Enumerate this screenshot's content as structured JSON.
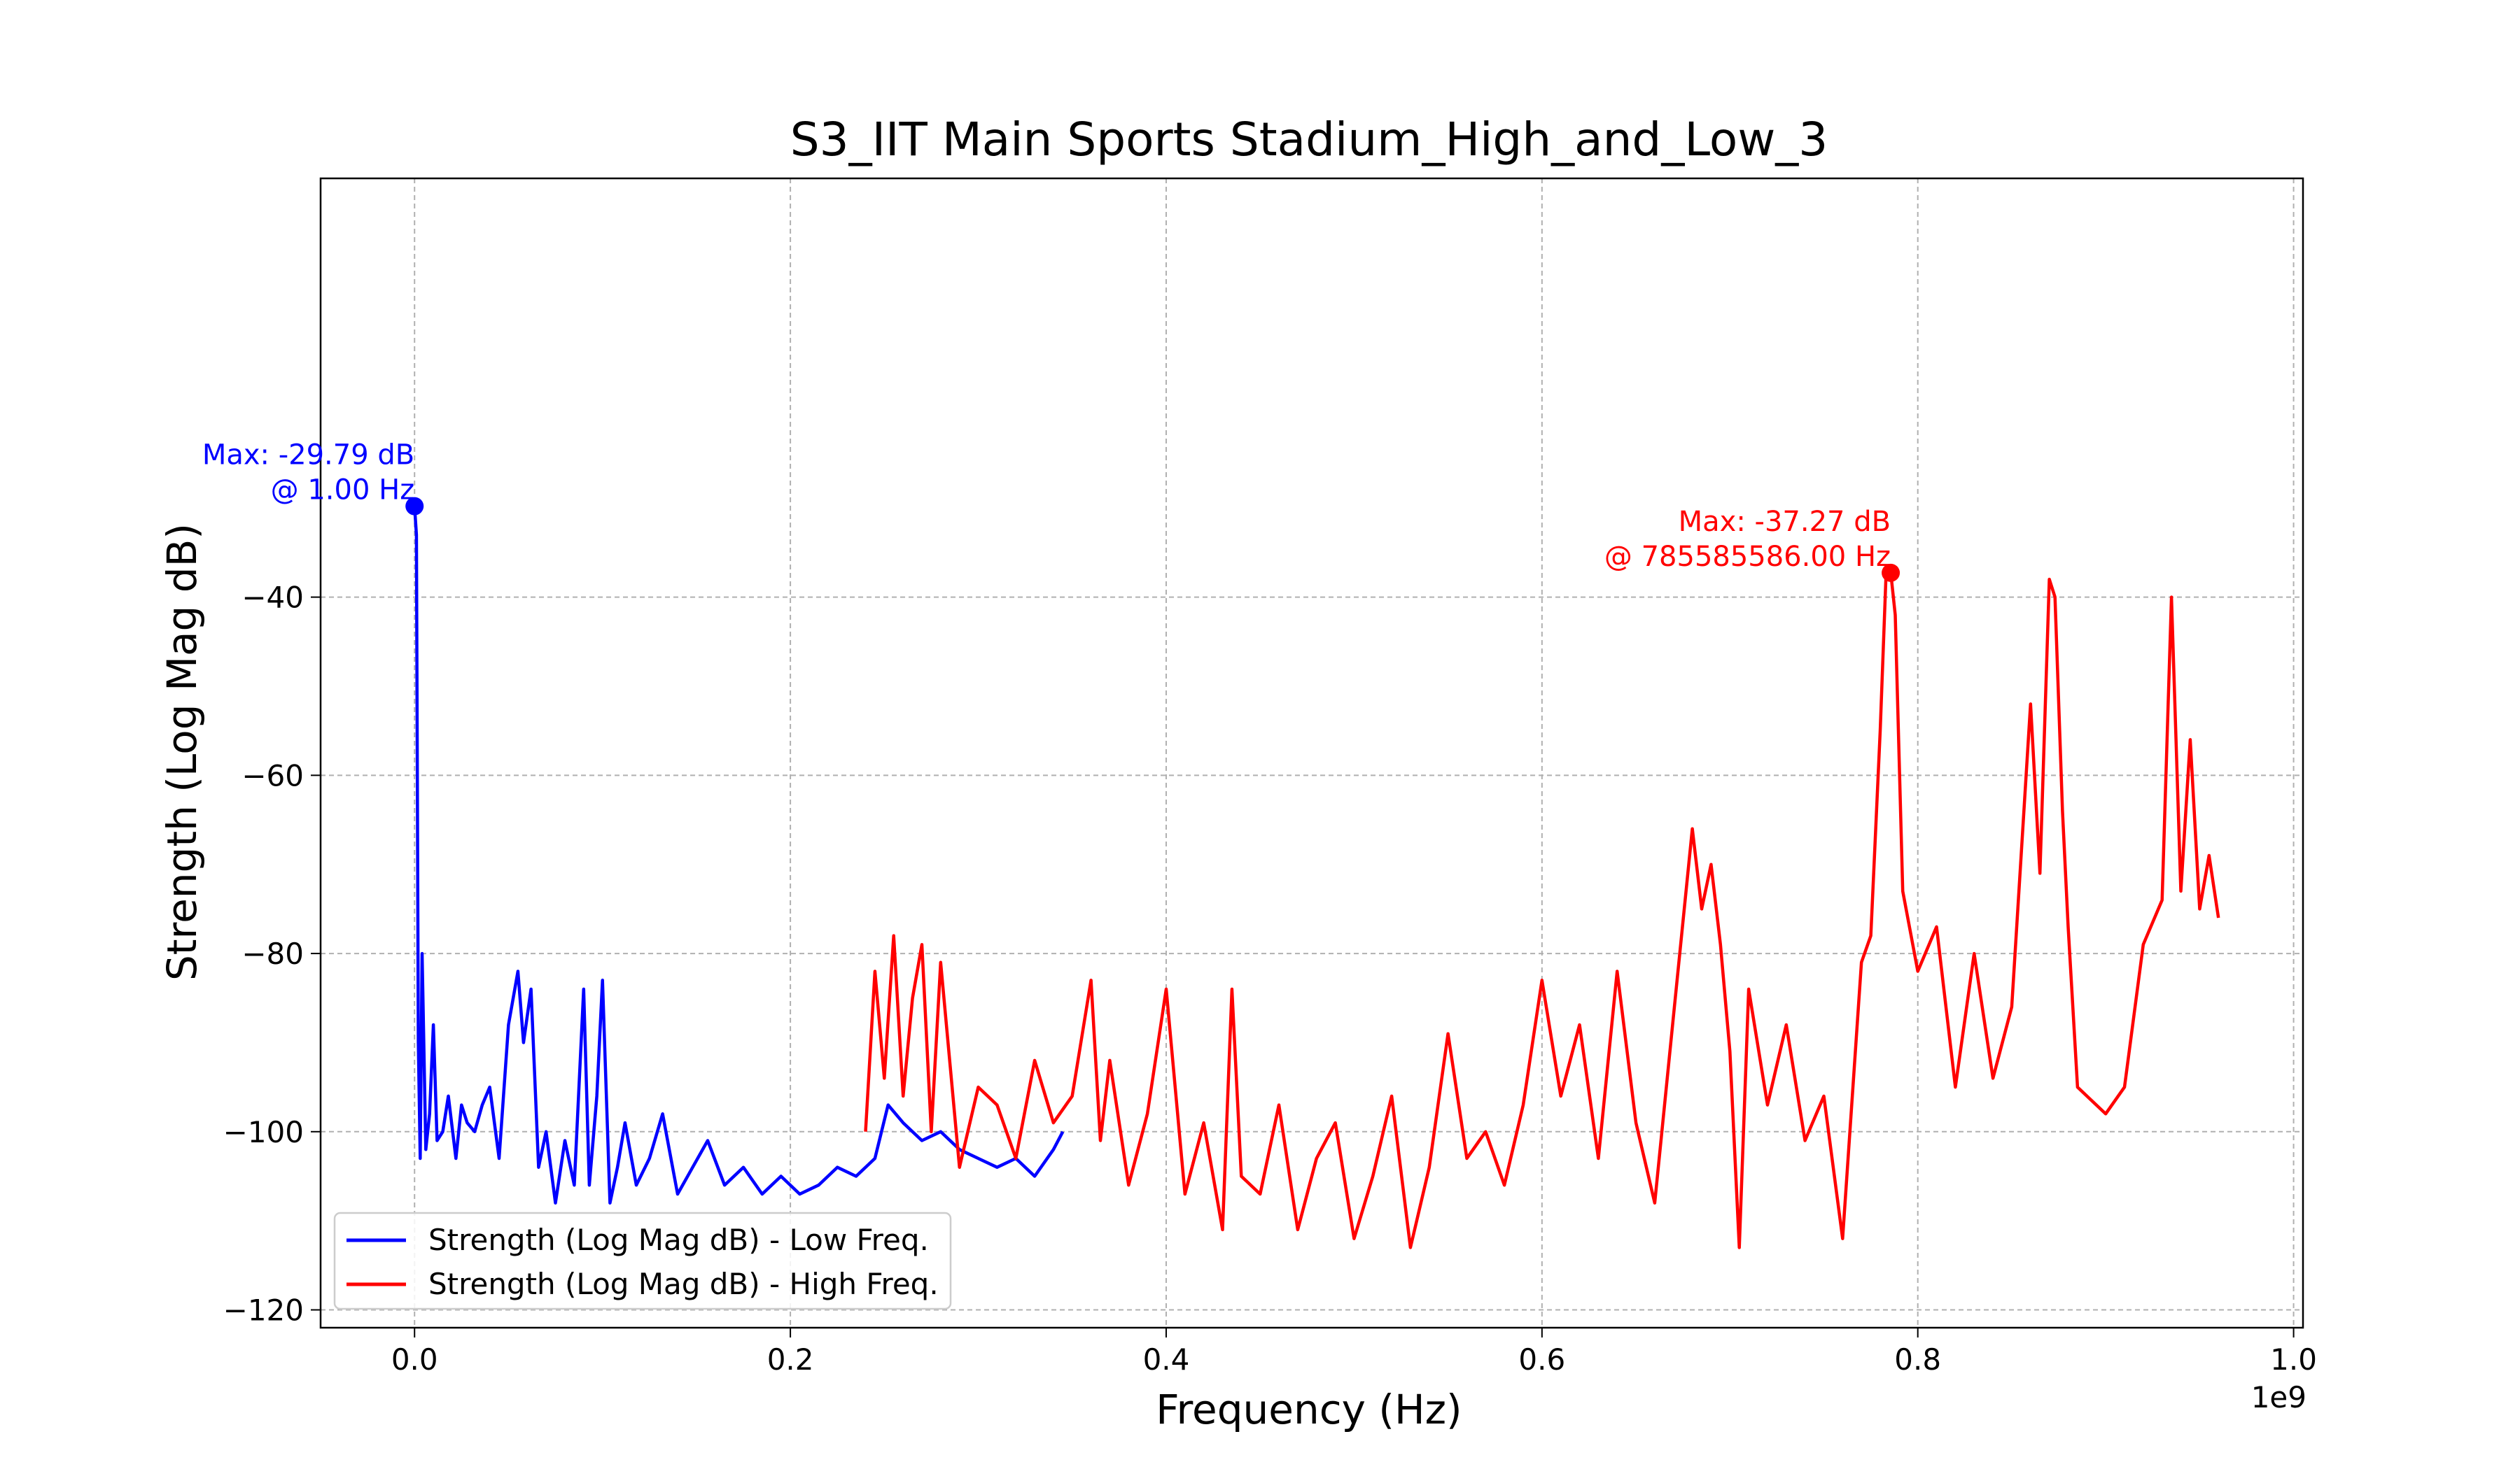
{
  "chart_data": {
    "type": "line",
    "title": "S3_IIT Main Sports Stadium_High_and_Low_3",
    "xlabel": "Frequency (Hz)",
    "ylabel": "Strength (Log Mag dB)",
    "x_offset_text": "1e9",
    "xlim": [
      -0.05,
      1.005
    ],
    "ylim": [
      -122,
      7
    ],
    "x_ticks": [
      0.0,
      0.2,
      0.4,
      0.6,
      0.8,
      1.0
    ],
    "x_tick_labels": [
      "0.0",
      "0.2",
      "0.4",
      "0.6",
      "0.8",
      "1.0"
    ],
    "y_ticks": [
      -120,
      -100,
      -80,
      -60,
      -40
    ],
    "y_tick_labels": [
      "−120",
      "−100",
      "−80",
      "−60",
      "−40"
    ],
    "grid": true,
    "legend_position": "bottom-left",
    "series": [
      {
        "name": "Strength (Log Mag dB) - Low Freq.",
        "color": "#0000ff",
        "x": [
          0.0,
          0.001,
          0.002,
          0.003,
          0.004,
          0.006,
          0.008,
          0.01,
          0.012,
          0.015,
          0.018,
          0.022,
          0.025,
          0.028,
          0.032,
          0.036,
          0.04,
          0.045,
          0.05,
          0.055,
          0.058,
          0.062,
          0.066,
          0.07,
          0.075,
          0.08,
          0.085,
          0.09,
          0.093,
          0.097,
          0.1,
          0.104,
          0.108,
          0.112,
          0.118,
          0.125,
          0.132,
          0.14,
          0.148,
          0.156,
          0.165,
          0.175,
          0.185,
          0.195,
          0.205,
          0.215,
          0.225,
          0.235,
          0.245,
          0.252,
          0.26,
          0.27,
          0.28,
          0.29,
          0.3,
          0.31,
          0.32,
          0.33,
          0.34,
          0.345
        ],
        "y": [
          -29.79,
          -33,
          -90,
          -103,
          -80,
          -102,
          -98,
          -88,
          -101,
          -100,
          -96,
          -103,
          -97,
          -99,
          -100,
          -97,
          -95,
          -103,
          -88,
          -82,
          -90,
          -84,
          -104,
          -100,
          -108,
          -101,
          -106,
          -84,
          -106,
          -96,
          -83,
          -108,
          -104,
          -99,
          -106,
          -103,
          -98,
          -107,
          -104,
          -101,
          -106,
          -104,
          -107,
          -105,
          -107,
          -106,
          -104,
          -105,
          -103,
          -97,
          -99,
          -101,
          -100,
          -102,
          -103,
          -104,
          -103,
          -105,
          -102,
          -100
        ]
      },
      {
        "name": "Strength (Log Mag dB) - High Freq.",
        "color": "#ff0000",
        "x": [
          0.24,
          0.245,
          0.25,
          0.255,
          0.26,
          0.265,
          0.27,
          0.275,
          0.28,
          0.29,
          0.3,
          0.31,
          0.32,
          0.33,
          0.34,
          0.35,
          0.36,
          0.365,
          0.37,
          0.38,
          0.39,
          0.4,
          0.41,
          0.42,
          0.43,
          0.435,
          0.44,
          0.45,
          0.46,
          0.47,
          0.48,
          0.49,
          0.5,
          0.51,
          0.52,
          0.53,
          0.54,
          0.55,
          0.56,
          0.57,
          0.58,
          0.59,
          0.6,
          0.61,
          0.62,
          0.63,
          0.64,
          0.65,
          0.66,
          0.67,
          0.68,
          0.685,
          0.69,
          0.695,
          0.7,
          0.705,
          0.71,
          0.72,
          0.73,
          0.74,
          0.75,
          0.76,
          0.77,
          0.775,
          0.78,
          0.783,
          0.7856,
          0.788,
          0.792,
          0.8,
          0.81,
          0.82,
          0.83,
          0.84,
          0.85,
          0.86,
          0.865,
          0.87,
          0.873,
          0.877,
          0.88,
          0.885,
          0.89,
          0.9,
          0.91,
          0.92,
          0.93,
          0.935,
          0.94,
          0.945,
          0.95,
          0.955,
          0.96
        ],
        "y": [
          -100,
          -82,
          -94,
          -78,
          -96,
          -85,
          -79,
          -100,
          -81,
          -104,
          -95,
          -97,
          -103,
          -92,
          -99,
          -96,
          -83,
          -101,
          -92,
          -106,
          -98,
          -84,
          -107,
          -99,
          -111,
          -84,
          -105,
          -107,
          -97,
          -111,
          -103,
          -99,
          -112,
          -105,
          -96,
          -113,
          -104,
          -89,
          -103,
          -100,
          -106,
          -97,
          -83,
          -96,
          -88,
          -103,
          -82,
          -99,
          -108,
          -87,
          -66,
          -75,
          -70,
          -79,
          -91,
          -113,
          -84,
          -97,
          -88,
          -101,
          -96,
          -112,
          -81,
          -78,
          -55,
          -38,
          -37.27,
          -42,
          -73,
          -82,
          -77,
          -95,
          -80,
          -94,
          -86,
          -52,
          -71,
          -38,
          -40,
          -64,
          -77,
          -95,
          -96,
          -98,
          -95,
          -79,
          -74,
          -40,
          -73,
          -56,
          -75,
          -69,
          -76
        ]
      }
    ],
    "annotations": [
      {
        "series": 0,
        "x": 0.0,
        "y": -29.79,
        "line1": "Max: -29.79 dB",
        "line2": "@ 1.00 Hz",
        "color": "#0000ff"
      },
      {
        "series": 1,
        "x": 0.7856,
        "y": -37.27,
        "line1": "Max: -37.27 dB",
        "line2": "@ 785585586.00 Hz",
        "color": "#ff0000"
      }
    ]
  }
}
